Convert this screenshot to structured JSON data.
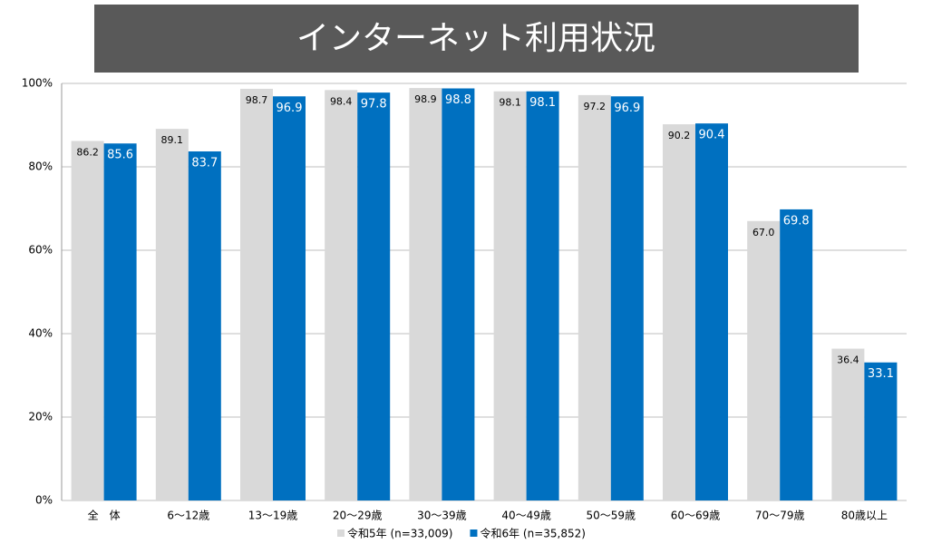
{
  "chart_data": {
    "type": "bar",
    "title": "インターネット利用状況",
    "categories": [
      "全　体",
      "6～12歳",
      "13～19歳",
      "20～29歳",
      "30～39歳",
      "40～49歳",
      "50～59歳",
      "60～69歳",
      "70～79歳",
      "80歳以上"
    ],
    "series": [
      {
        "name": "令和5年 (n=33,009)",
        "color": "#d9d9d9",
        "values": [
          86.2,
          89.1,
          98.7,
          98.4,
          98.9,
          98.1,
          97.2,
          90.2,
          67,
          36.4
        ],
        "value_labels": [
          "86.2",
          "89.1",
          "98.7",
          "98.4",
          "98.9",
          "98.1",
          "97.2",
          "90.2",
          "67.0",
          "36.4"
        ]
      },
      {
        "name": "令和6年 (n=35,852)",
        "color": "#0070c0",
        "values": [
          85.6,
          83.7,
          96.9,
          97.8,
          98.8,
          98.1,
          96.9,
          90.4,
          69.8,
          33.1
        ]
      }
    ],
    "ylim": [
      0,
      100
    ],
    "yticks": [
      {
        "value": 0,
        "label": "0%"
      },
      {
        "value": 20,
        "label": "20%"
      },
      {
        "value": 40,
        "label": "40%"
      },
      {
        "value": 60,
        "label": "60%"
      },
      {
        "value": 80,
        "label": "80%"
      },
      {
        "value": 100,
        "label": "100%"
      }
    ],
    "grid": true
  }
}
